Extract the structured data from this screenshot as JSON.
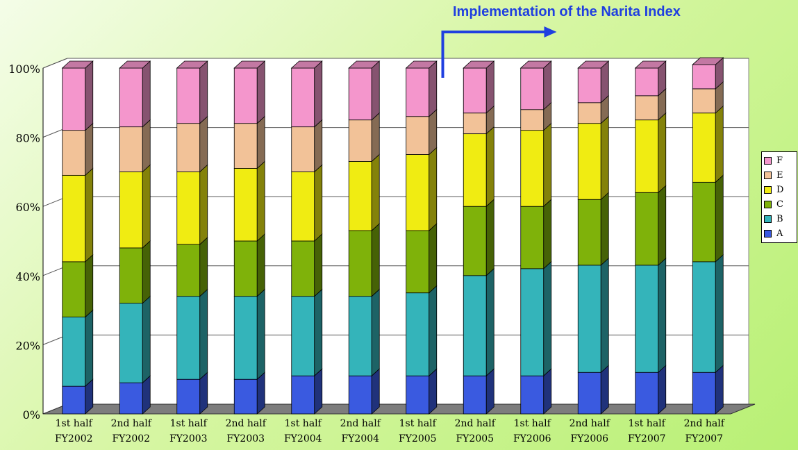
{
  "annotation": "Implementation of the Narita Index",
  "colors": {
    "A": "#3a5ae0",
    "B": "#34b4ba",
    "C": "#7fb20a",
    "D": "#f0ec12",
    "E": "#f2c298",
    "F": "#f496cc",
    "annotation": "#1f3fe0"
  },
  "chart_data": {
    "type": "bar",
    "stacked": true,
    "three_d": true,
    "title": "",
    "xlabel": "",
    "ylabel": "",
    "ylim": [
      0,
      100
    ],
    "y_ticks": [
      "0%",
      "20%",
      "40%",
      "60%",
      "80%",
      "100%"
    ],
    "grid": true,
    "legend_position": "right",
    "categories": [
      [
        "1st half",
        "FY2002"
      ],
      [
        "2nd half",
        "FY2002"
      ],
      [
        "1st half",
        "FY2003"
      ],
      [
        "2nd half",
        "FY2003"
      ],
      [
        "1st half",
        "FY2004"
      ],
      [
        "2nd half",
        "FY2004"
      ],
      [
        "1st half",
        "FY2005"
      ],
      [
        "2nd half",
        "FY2005"
      ],
      [
        "1st half",
        "FY2006"
      ],
      [
        "2nd half",
        "FY2006"
      ],
      [
        "1st half",
        "FY2007"
      ],
      [
        "2nd half",
        "FY2007"
      ]
    ],
    "series": [
      {
        "name": "A",
        "values": [
          8,
          9,
          10,
          10,
          11,
          11,
          11,
          11,
          11,
          12,
          12,
          12
        ]
      },
      {
        "name": "B",
        "values": [
          20,
          23,
          24,
          24,
          23,
          23,
          24,
          29,
          31,
          31,
          31,
          32
        ]
      },
      {
        "name": "C",
        "values": [
          16,
          16,
          15,
          16,
          16,
          19,
          18,
          20,
          18,
          19,
          21,
          23
        ]
      },
      {
        "name": "D",
        "values": [
          25,
          22,
          21,
          21,
          20,
          20,
          22,
          21,
          22,
          22,
          21,
          20
        ]
      },
      {
        "name": "E",
        "values": [
          13,
          13,
          14,
          13,
          13,
          12,
          11,
          6,
          6,
          6,
          7,
          7
        ]
      },
      {
        "name": "F",
        "values": [
          18,
          17,
          16,
          16,
          17,
          15,
          14,
          13,
          12,
          10,
          8,
          7
        ]
      }
    ],
    "legend_order": [
      "F",
      "E",
      "D",
      "C",
      "B",
      "A"
    ],
    "annotation_starts_before_category": 7
  }
}
